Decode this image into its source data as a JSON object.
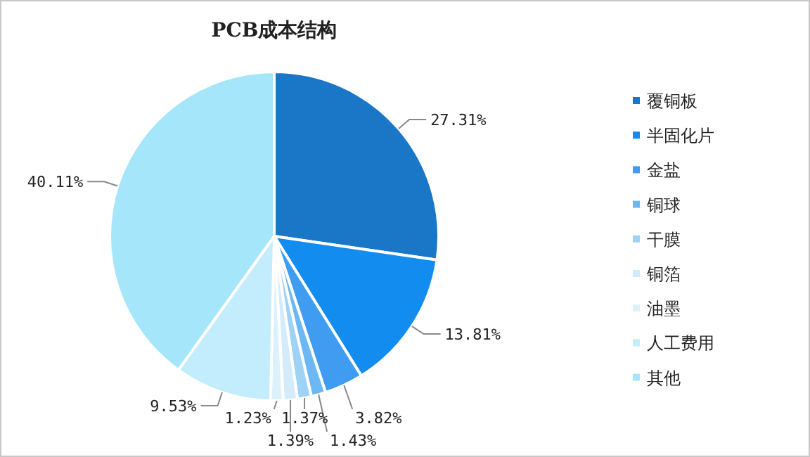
{
  "chart_data": {
    "type": "pie",
    "title": "PCB成本结构",
    "categories": [
      "覆铜板",
      "半固化片",
      "金盐",
      "铜球",
      "干膜",
      "铜箔",
      "油墨",
      "人工费用",
      "其他"
    ],
    "values": [
      27.31,
      13.81,
      3.82,
      1.43,
      1.37,
      1.39,
      1.23,
      9.53,
      40.11
    ],
    "colors": [
      "#1a76c6",
      "#138cf0",
      "#3f9cf0",
      "#6cb8f2",
      "#9fd3f6",
      "#d4ebfb",
      "#dcf2fb",
      "#c3ecfd",
      "#a6e6fb"
    ],
    "value_labels": [
      "27.31%",
      "13.81%",
      "3.82%",
      "1.43%",
      "1.37%",
      "1.39%",
      "1.23%",
      "9.53%",
      "40.11%"
    ],
    "legend": "right"
  }
}
